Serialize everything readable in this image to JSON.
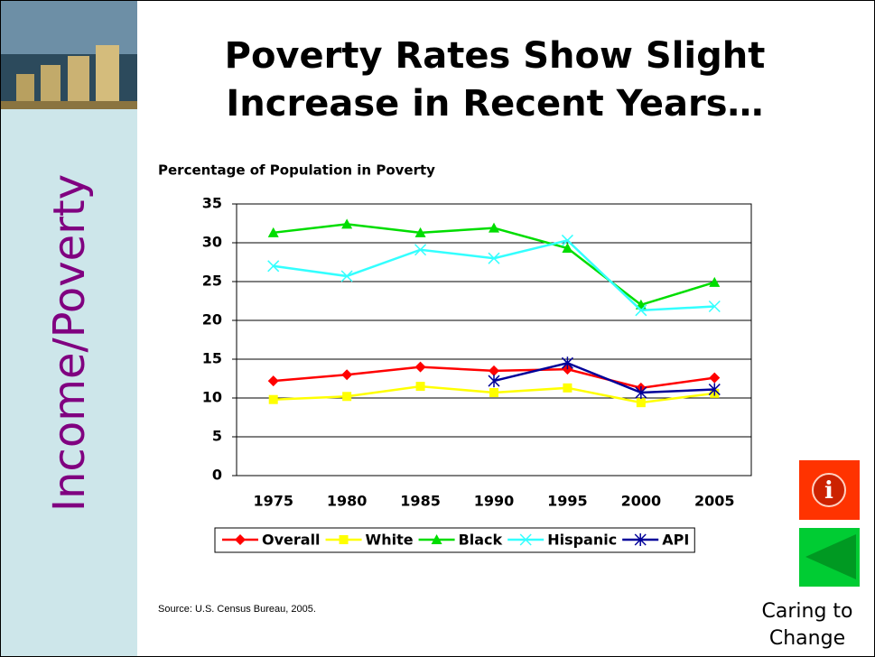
{
  "sidebar": "Income/Poverty",
  "title": [
    "Poverty Rates Show Slight",
    "Increase in Recent Years…"
  ],
  "source": "Source: U.S. Census Bureau, 2005.",
  "footer": [
    "Caring to",
    "Change"
  ],
  "chart_data": {
    "type": "line",
    "title": "Percentage of Population in Poverty",
    "categories": [
      "1975",
      "1980",
      "1985",
      "1990",
      "1995",
      "2000",
      "2005"
    ],
    "series": [
      {
        "name": "Overall",
        "color": "#ff0000",
        "marker": "diamond",
        "values": [
          12.2,
          13.0,
          14.0,
          13.5,
          13.7,
          11.3,
          12.6
        ]
      },
      {
        "name": "White",
        "color": "#ffff00",
        "marker": "square",
        "values": [
          9.8,
          10.2,
          11.5,
          10.7,
          11.3,
          9.4,
          10.6
        ]
      },
      {
        "name": "Black",
        "color": "#00dd00",
        "marker": "triangle",
        "values": [
          31.3,
          32.4,
          31.3,
          31.9,
          29.3,
          22.0,
          24.9
        ]
      },
      {
        "name": "Hispanic",
        "color": "#33ffff",
        "marker": "x",
        "values": [
          27.0,
          25.7,
          29.1,
          28.0,
          30.3,
          21.3,
          21.8
        ]
      },
      {
        "name": "API",
        "color": "#000099",
        "marker": "star",
        "values": [
          null,
          null,
          null,
          12.2,
          14.5,
          10.7,
          11.1
        ]
      }
    ],
    "ylim": [
      0,
      35
    ],
    "yticks": [
      0,
      5,
      10,
      15,
      20,
      25,
      30,
      35
    ],
    "grid": true,
    "legend": "bottom"
  }
}
